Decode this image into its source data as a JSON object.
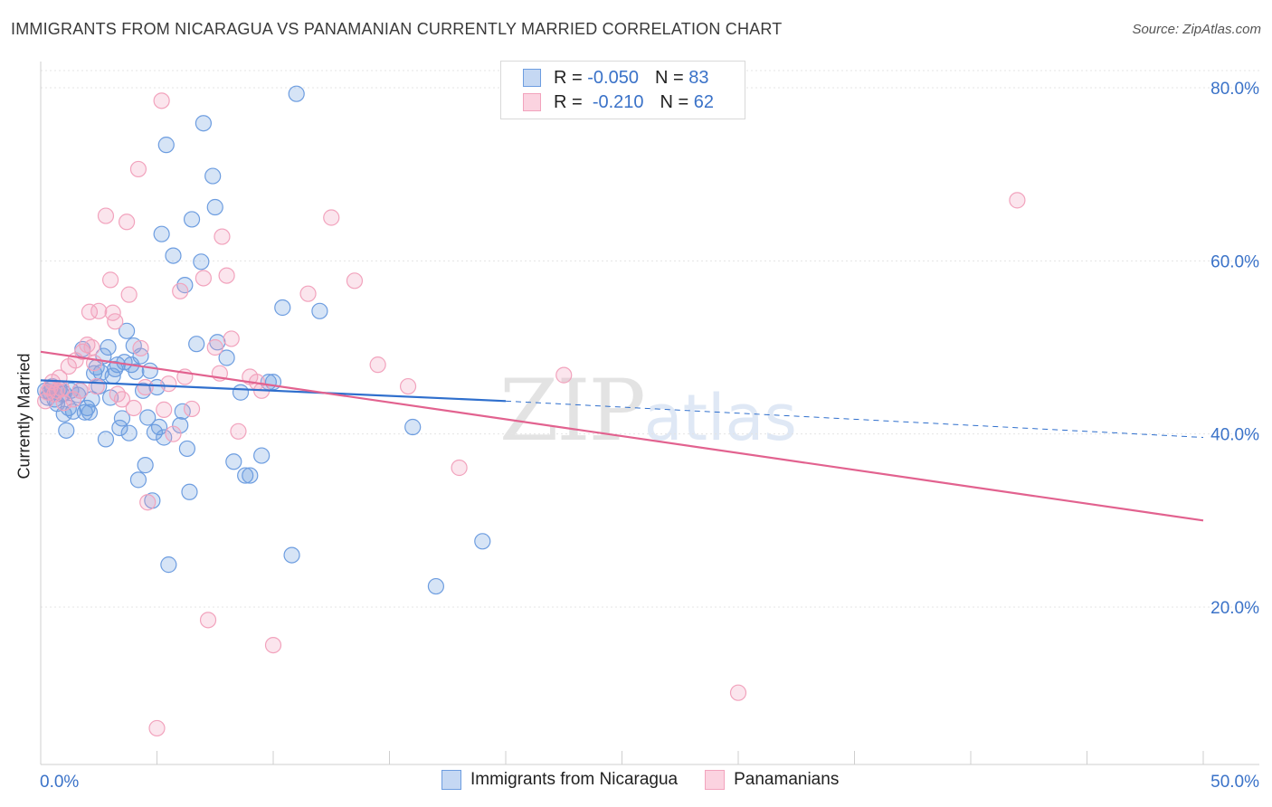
{
  "title": "IMMIGRANTS FROM NICARAGUA VS PANAMANIAN CURRENTLY MARRIED CORRELATION CHART",
  "source": "Source: ZipAtlas.com",
  "legend": {
    "row1": {
      "r_label": "R =",
      "r_value": "-0.050",
      "n_label": "N =",
      "n_value": "83"
    },
    "row2": {
      "r_label": "R =",
      "r_value": "-0.210",
      "n_label": "N =",
      "n_value": "62"
    }
  },
  "watermark": {
    "zip": "ZIP",
    "atlas": "atlas"
  },
  "chart_data": {
    "type": "scatter",
    "title": "IMMIGRANTS FROM NICARAGUA VS PANAMANIAN CURRENTLY MARRIED CORRELATION CHART",
    "xlabel": "",
    "ylabel": "Currently Married",
    "xlim": [
      0,
      50
    ],
    "ylim": [
      0,
      80
    ],
    "x_tick_labels": [
      "0.0%",
      "50.0%"
    ],
    "y_tick_labels": [
      "20.0%",
      "40.0%",
      "60.0%",
      "80.0%"
    ],
    "y_ticks": [
      20,
      40,
      60,
      80
    ],
    "colors": {
      "blue": "#6d9de0",
      "pink": "#f2a3bd",
      "blue_line": "#2f6fcd",
      "pink_line": "#e2628f"
    },
    "series": [
      {
        "name": "Immigrants from Nicaragua",
        "color": "#6d9de0",
        "trend": {
          "x0": 0,
          "y0": 46.2,
          "x1": 20,
          "y1": 43.8,
          "x_dash_end": 50,
          "y_dash_end": 39.6
        },
        "points": [
          [
            0.2,
            45.0
          ],
          [
            0.3,
            44.2
          ],
          [
            0.4,
            44.8
          ],
          [
            0.5,
            45.5
          ],
          [
            0.6,
            44.0
          ],
          [
            0.7,
            43.5
          ],
          [
            0.8,
            45.2
          ],
          [
            0.9,
            44.6
          ],
          [
            1.0,
            42.3
          ],
          [
            1.1,
            40.4
          ],
          [
            1.2,
            43.0
          ],
          [
            1.3,
            45.0
          ],
          [
            1.4,
            42.6
          ],
          [
            1.6,
            44.5
          ],
          [
            1.7,
            45.0
          ],
          [
            1.8,
            49.8
          ],
          [
            1.9,
            42.5
          ],
          [
            2.0,
            43.0
          ],
          [
            2.1,
            42.5
          ],
          [
            2.2,
            44.0
          ],
          [
            2.3,
            47.0
          ],
          [
            2.4,
            47.7
          ],
          [
            2.5,
            45.5
          ],
          [
            2.6,
            47.1
          ],
          [
            2.7,
            49.0
          ],
          [
            2.8,
            39.4
          ],
          [
            2.9,
            50.0
          ],
          [
            3.0,
            44.2
          ],
          [
            3.1,
            46.7
          ],
          [
            3.2,
            47.5
          ],
          [
            3.3,
            48.0
          ],
          [
            3.4,
            40.7
          ],
          [
            3.5,
            41.8
          ],
          [
            3.6,
            48.3
          ],
          [
            3.7,
            51.9
          ],
          [
            3.8,
            40.1
          ],
          [
            3.9,
            48.0
          ],
          [
            4.0,
            50.2
          ],
          [
            4.1,
            47.2
          ],
          [
            4.2,
            34.7
          ],
          [
            4.3,
            49.0
          ],
          [
            4.4,
            45.0
          ],
          [
            4.5,
            36.4
          ],
          [
            4.6,
            41.9
          ],
          [
            4.7,
            47.3
          ],
          [
            4.8,
            32.3
          ],
          [
            4.9,
            40.2
          ],
          [
            5.0,
            45.4
          ],
          [
            5.1,
            40.8
          ],
          [
            5.2,
            63.1
          ],
          [
            5.3,
            39.6
          ],
          [
            5.4,
            73.4
          ],
          [
            5.5,
            24.9
          ],
          [
            5.7,
            60.6
          ],
          [
            6.0,
            41.0
          ],
          [
            6.1,
            42.6
          ],
          [
            6.2,
            57.2
          ],
          [
            6.3,
            38.3
          ],
          [
            6.4,
            33.3
          ],
          [
            6.5,
            64.8
          ],
          [
            6.7,
            50.4
          ],
          [
            6.9,
            59.9
          ],
          [
            7.0,
            75.9
          ],
          [
            7.4,
            69.8
          ],
          [
            7.5,
            66.2
          ],
          [
            7.6,
            50.6
          ],
          [
            8.0,
            48.8
          ],
          [
            8.3,
            36.8
          ],
          [
            8.6,
            44.8
          ],
          [
            8.8,
            35.2
          ],
          [
            9.0,
            35.2
          ],
          [
            9.5,
            37.5
          ],
          [
            9.8,
            46.0
          ],
          [
            10.0,
            46.0
          ],
          [
            10.4,
            54.6
          ],
          [
            10.8,
            26.0
          ],
          [
            11.0,
            79.3
          ],
          [
            12.0,
            54.2
          ],
          [
            16.0,
            40.8
          ],
          [
            17.0,
            22.4
          ],
          [
            19.0,
            27.6
          ],
          [
            0.5,
            45.3
          ],
          [
            1.0,
            44.7
          ]
        ]
      },
      {
        "name": "Panamanians",
        "color": "#f2a3bd",
        "trend": {
          "x0": 0,
          "y0": 49.5,
          "x1": 50,
          "y1": 30.0
        },
        "points": [
          [
            0.2,
            43.8
          ],
          [
            0.3,
            44.8
          ],
          [
            0.4,
            45.3
          ],
          [
            0.5,
            46.0
          ],
          [
            0.6,
            44.6
          ],
          [
            0.7,
            45.0
          ],
          [
            0.8,
            46.5
          ],
          [
            0.9,
            45.2
          ],
          [
            1.0,
            43.6
          ],
          [
            1.2,
            47.8
          ],
          [
            1.4,
            44.0
          ],
          [
            1.5,
            48.5
          ],
          [
            1.7,
            45.0
          ],
          [
            1.8,
            49.5
          ],
          [
            2.0,
            50.3
          ],
          [
            2.1,
            54.1
          ],
          [
            2.2,
            50.0
          ],
          [
            2.3,
            48.2
          ],
          [
            2.4,
            45.5
          ],
          [
            2.5,
            54.2
          ],
          [
            2.8,
            65.2
          ],
          [
            3.0,
            57.8
          ],
          [
            3.1,
            54.0
          ],
          [
            3.2,
            53.0
          ],
          [
            3.3,
            44.6
          ],
          [
            3.5,
            44.0
          ],
          [
            3.7,
            64.5
          ],
          [
            3.8,
            56.1
          ],
          [
            4.0,
            43.0
          ],
          [
            4.2,
            70.6
          ],
          [
            4.3,
            49.9
          ],
          [
            4.5,
            45.4
          ],
          [
            4.6,
            32.1
          ],
          [
            5.0,
            6.0
          ],
          [
            5.2,
            78.5
          ],
          [
            5.3,
            42.8
          ],
          [
            5.5,
            45.8
          ],
          [
            5.7,
            40.0
          ],
          [
            6.0,
            56.5
          ],
          [
            6.2,
            46.6
          ],
          [
            6.5,
            42.9
          ],
          [
            7.0,
            58.0
          ],
          [
            7.2,
            18.5
          ],
          [
            7.5,
            50.0
          ],
          [
            7.7,
            47.0
          ],
          [
            7.8,
            62.8
          ],
          [
            8.0,
            58.3
          ],
          [
            8.2,
            51.0
          ],
          [
            8.5,
            40.3
          ],
          [
            9.0,
            46.6
          ],
          [
            9.3,
            46.0
          ],
          [
            9.5,
            45.0
          ],
          [
            10.0,
            15.6
          ],
          [
            11.5,
            56.2
          ],
          [
            12.5,
            65.0
          ],
          [
            13.5,
            57.7
          ],
          [
            14.5,
            48.0
          ],
          [
            15.8,
            45.5
          ],
          [
            18.0,
            36.1
          ],
          [
            22.5,
            46.8
          ],
          [
            30.0,
            10.1
          ],
          [
            42.0,
            67.0
          ]
        ]
      }
    ]
  },
  "bottom_legend": [
    {
      "label": "Immigrants from Nicaragua"
    },
    {
      "label": "Panamanians"
    }
  ]
}
